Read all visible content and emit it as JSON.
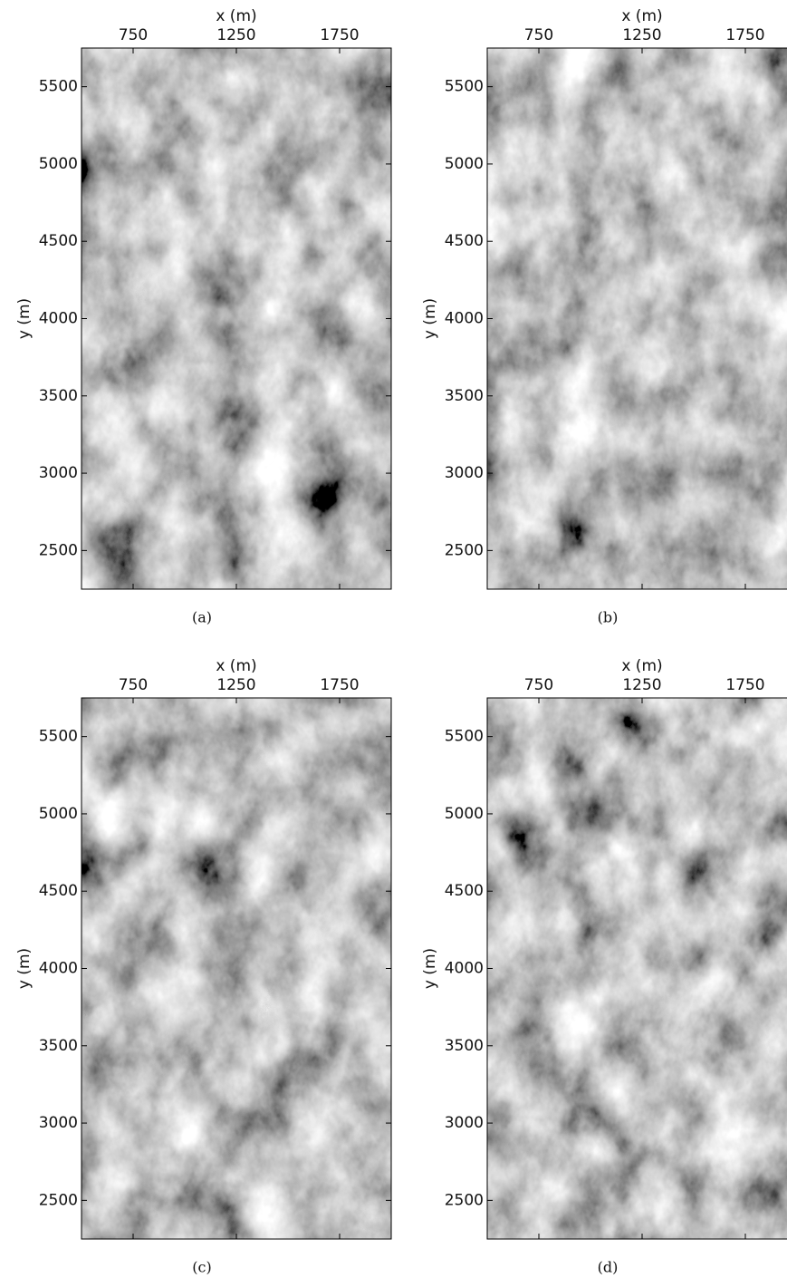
{
  "chart_data": [
    {
      "type": "image",
      "xlabel": "x (m)",
      "ylabel": "y (m)",
      "caption": "(a)",
      "xlim": [
        500,
        2000
      ],
      "ylim": [
        2250,
        5750
      ],
      "xticks": [
        750,
        1250,
        1750
      ],
      "yticks": [
        2500,
        3000,
        3500,
        4000,
        4500,
        5000,
        5500
      ]
    },
    {
      "type": "image",
      "xlabel": "x (m)",
      "ylabel": "y (m)",
      "caption": "(b)",
      "xlim": [
        500,
        2000
      ],
      "ylim": [
        2250,
        5750
      ],
      "xticks": [
        750,
        1250,
        1750
      ],
      "yticks": [
        2500,
        3000,
        3500,
        4000,
        4500,
        5000,
        5500
      ]
    },
    {
      "type": "image",
      "xlabel": "x (m)",
      "ylabel": "y (m)",
      "caption": "(c)",
      "xlim": [
        500,
        2000
      ],
      "ylim": [
        2250,
        5750
      ],
      "xticks": [
        750,
        1250,
        1750
      ],
      "yticks": [
        2500,
        3000,
        3500,
        4000,
        4500,
        5000,
        5500
      ]
    },
    {
      "type": "image",
      "xlabel": "x (m)",
      "ylabel": "y (m)",
      "caption": "(d)",
      "xlim": [
        500,
        2000
      ],
      "ylim": [
        2250,
        5750
      ],
      "xticks": [
        750,
        1250,
        1750
      ],
      "yticks": [
        2500,
        3000,
        3500,
        4000,
        4500,
        5000,
        5500
      ]
    }
  ]
}
